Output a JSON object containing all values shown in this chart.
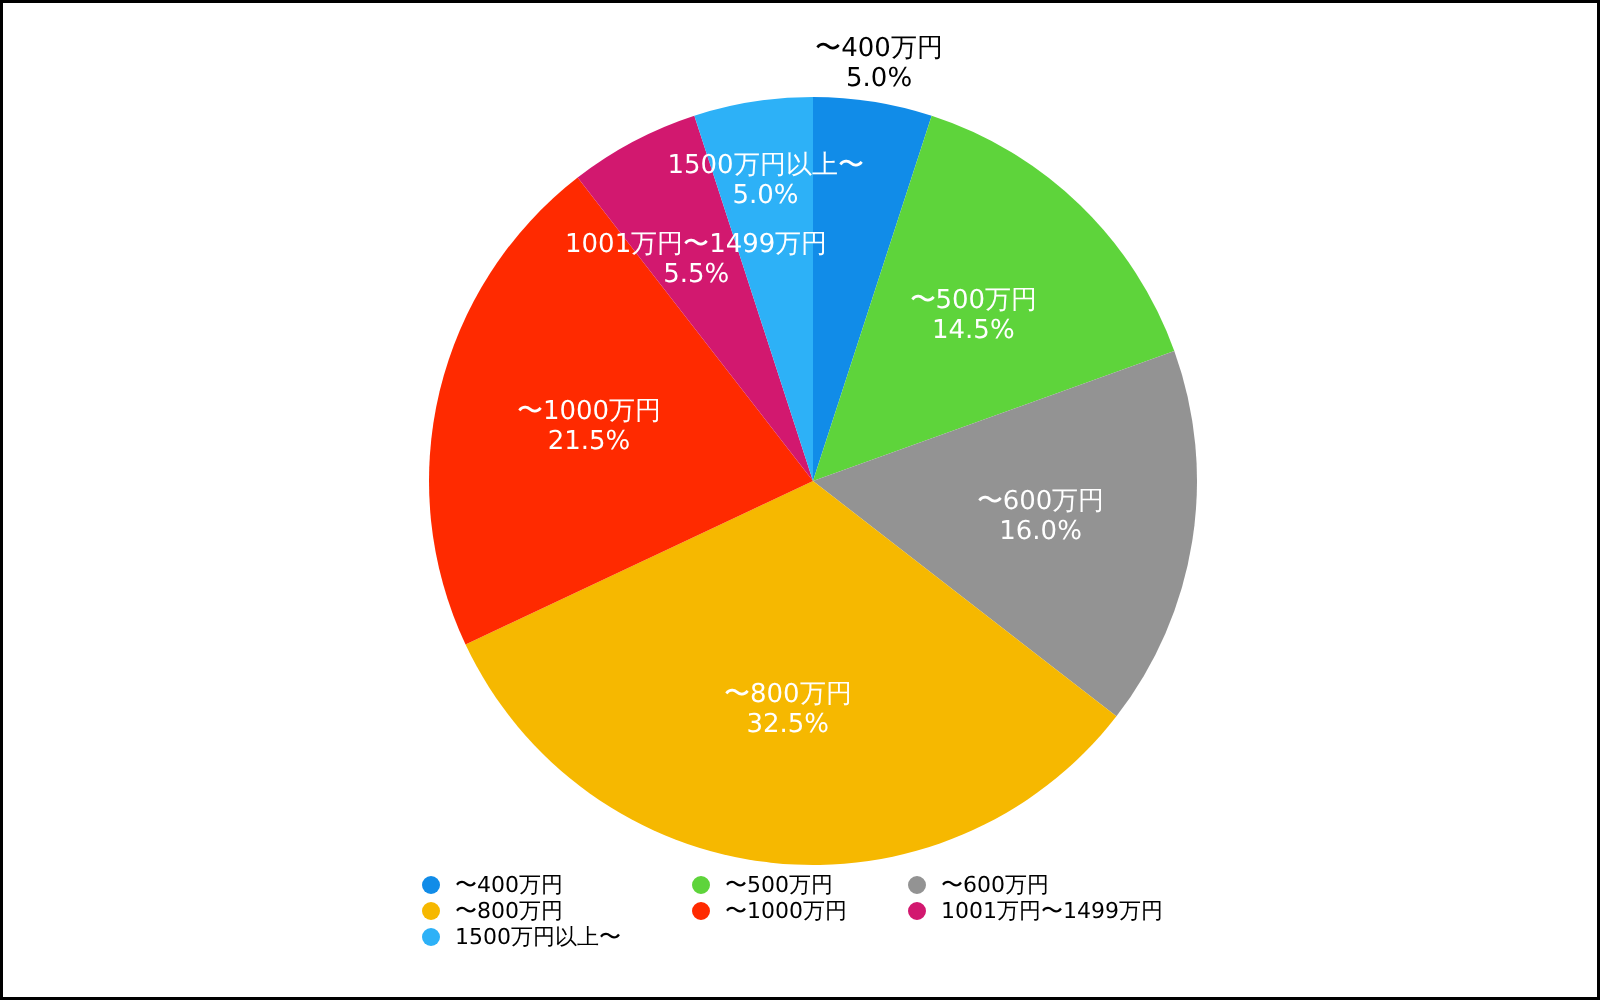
{
  "chart_data": {
    "type": "pie",
    "categories": [
      "〜400万円",
      "〜500万円",
      "〜600万円",
      "〜800万円",
      "〜1000万円",
      "1001万円〜1499万円",
      "1500万円以上〜"
    ],
    "values": [
      5.0,
      14.5,
      16.0,
      32.5,
      21.5,
      5.5,
      5.0
    ],
    "value_labels": [
      "5.0%",
      "14.5%",
      "16.0%",
      "32.5%",
      "21.5%",
      "5.5%",
      "5.0%"
    ],
    "colors": [
      "#118ce8",
      "#5ed43b",
      "#939393",
      "#f6b800",
      "#ff2a00",
      "#d2186f",
      "#2db1f7"
    ],
    "legend": "bottom"
  }
}
